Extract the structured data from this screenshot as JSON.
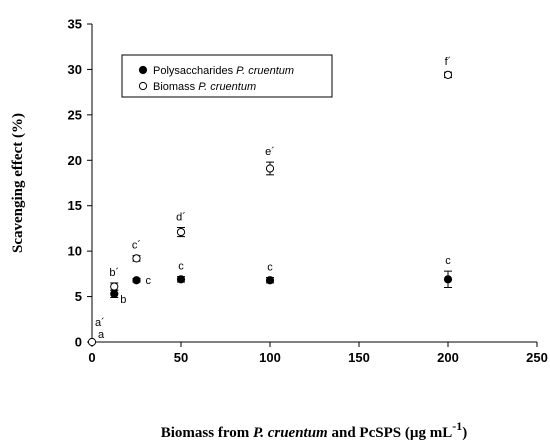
{
  "chart_data": {
    "type": "scatter",
    "title": "",
    "xlabel_parts": [
      {
        "text": "Biomass from ",
        "italic": false,
        "sup": false
      },
      {
        "text": "P. cruentum",
        "italic": true,
        "sup": false
      },
      {
        "text": " and PcSPS (µg mL",
        "italic": false,
        "sup": false
      },
      {
        "text": "-1",
        "italic": false,
        "sup": true
      },
      {
        "text": ")",
        "italic": false,
        "sup": false
      }
    ],
    "ylabel": "Scavenging effect (%)",
    "xlim": [
      0,
      250
    ],
    "ylim": [
      0,
      35
    ],
    "xticks": [
      0,
      50,
      100,
      150,
      200,
      250
    ],
    "yticks": [
      0,
      5,
      10,
      15,
      20,
      25,
      30,
      35
    ],
    "grid": false,
    "legend_position": "top-left",
    "series": [
      {
        "name_plain": "Polysaccharides ",
        "name_italic": "P. cruentum",
        "marker": "filled-circle",
        "points": [
          {
            "x": 12.5,
            "y": 5.3,
            "err": 0.4,
            "label": "b"
          },
          {
            "x": 25,
            "y": 6.8,
            "err": 0.2,
            "label": "c"
          },
          {
            "x": 50,
            "y": 6.9,
            "err": 0.3,
            "label": "c"
          },
          {
            "x": 100,
            "y": 6.8,
            "err": 0.3,
            "label": "c"
          },
          {
            "x": 200,
            "y": 6.9,
            "err": 0.9,
            "label": "c"
          }
        ]
      },
      {
        "name_plain": "Biomass ",
        "name_italic": "P. cruentum",
        "marker": "open-circle",
        "points": [
          {
            "x": 0,
            "y": 0,
            "err": 0,
            "label": "a´"
          },
          {
            "x": 12.5,
            "y": 6.1,
            "err": 0.4,
            "label": "b´"
          },
          {
            "x": 25,
            "y": 9.2,
            "err": 0.3,
            "label": "c´"
          },
          {
            "x": 50,
            "y": 12.1,
            "err": 0.5,
            "label": "d´"
          },
          {
            "x": 100,
            "y": 19.1,
            "err": 0.7,
            "label": "e´"
          },
          {
            "x": 200,
            "y": 29.4,
            "err": 0.3,
            "label": "f´"
          }
        ]
      }
    ],
    "extra_annotations": [
      {
        "x": 0,
        "y": 0,
        "text": "a"
      }
    ]
  }
}
